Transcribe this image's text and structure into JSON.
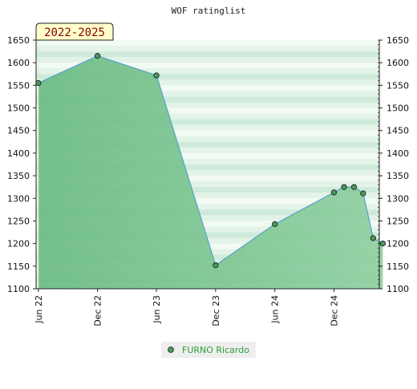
{
  "chart_data": {
    "type": "area",
    "title": "WOF ratinglist",
    "period_label": "2022-2025",
    "x_tick_labels": [
      "Jun 22",
      "Dec 22",
      "Jun 23",
      "Dec 23",
      "Jun 24",
      "Dec 24"
    ],
    "y_ticks": [
      1100,
      1150,
      1200,
      1250,
      1300,
      1350,
      1400,
      1450,
      1500,
      1550,
      1600,
      1650
    ],
    "ylim": [
      1100,
      1650
    ],
    "xlim": [
      "2022-05-25",
      "2025-04-20"
    ],
    "series": [
      {
        "name": "FURNO Ricardo",
        "points": [
          {
            "x": "2022-06-01",
            "y": 1555
          },
          {
            "x": "2022-12-01",
            "y": 1615
          },
          {
            "x": "2023-06-01",
            "y": 1572
          },
          {
            "x": "2023-12-01",
            "y": 1152
          },
          {
            "x": "2024-06-01",
            "y": 1243
          },
          {
            "x": "2024-12-01",
            "y": 1313
          },
          {
            "x": "2025-01-01",
            "y": 1325
          },
          {
            "x": "2025-02-01",
            "y": 1325
          },
          {
            "x": "2025-03-01",
            "y": 1311
          },
          {
            "x": "2025-04-01",
            "y": 1212
          },
          {
            "x": "2025-05-01",
            "y": 1200
          }
        ]
      }
    ],
    "legend_position": "bottom-center",
    "grid": "horizontal-bands",
    "colors": {
      "area": "#7cc490",
      "line": "#5aa6c8",
      "marker": "#4a9a5a",
      "legend_text": "#2e9b3a",
      "badge_bg": "#ffffcc",
      "badge_text": "#8b0000"
    }
  }
}
